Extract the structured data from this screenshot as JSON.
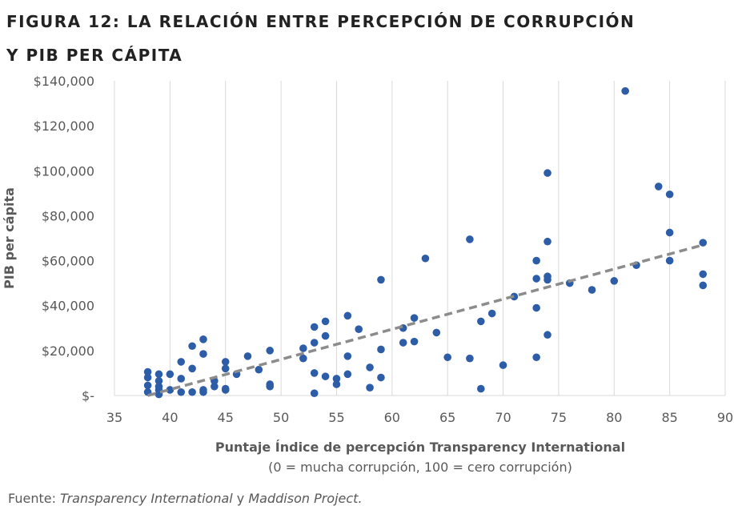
{
  "title": {
    "line1": "FIGURA 12: LA RELACIÓN ENTRE PERCEPCIÓN DE CORRUPCIÓN",
    "line2": "Y PIB PER CÁPITA"
  },
  "source": {
    "prefix": "Fuente: ",
    "source_a": "Transparency International",
    "connector": " y ",
    "source_b": "Maddison Project."
  },
  "colors": {
    "points": "#2E5DA8",
    "trendline": "#8C8C8C",
    "grid": "#D9D9D9",
    "axis_text": "#595959"
  },
  "chart_data": {
    "type": "scatter",
    "title": "FIGURA 12: LA RELACIÓN ENTRE PERCEPCIÓN DE CORRUPCIÓN Y PIB PER CÁPITA",
    "xlabel": "Puntaje Índice de percepción Transparency International",
    "xlabel_sub": "(0 = mucha corrupción, 100 = cero corrupción)",
    "ylabel": "PIB per cápita",
    "xlim": [
      35,
      90
    ],
    "ylim": [
      0,
      140000
    ],
    "x_ticks": [
      35,
      40,
      45,
      50,
      55,
      60,
      65,
      70,
      75,
      80,
      85,
      90
    ],
    "y_ticks": [
      0,
      20000,
      40000,
      60000,
      80000,
      100000,
      120000,
      140000
    ],
    "y_tick_labels": [
      "$-",
      "$20,000",
      "$40,000",
      "$60,000",
      "$80,000",
      "$100,000",
      "$120,000",
      "$140,000"
    ],
    "grid": "vertical",
    "points": [
      [
        38,
        10500
      ],
      [
        38,
        8000
      ],
      [
        38,
        4500
      ],
      [
        38,
        1500
      ],
      [
        39,
        9500
      ],
      [
        39,
        6500
      ],
      [
        39,
        4000
      ],
      [
        39,
        2500
      ],
      [
        39,
        500
      ],
      [
        40,
        9500
      ],
      [
        40,
        2500
      ],
      [
        41,
        15000
      ],
      [
        41,
        7500
      ],
      [
        41,
        1500
      ],
      [
        42,
        22000
      ],
      [
        42,
        12000
      ],
      [
        42,
        1500
      ],
      [
        43,
        25000
      ],
      [
        43,
        18500
      ],
      [
        43,
        2500
      ],
      [
        43,
        1500
      ],
      [
        44,
        6500
      ],
      [
        44,
        4000
      ],
      [
        45,
        15000
      ],
      [
        45,
        12000
      ],
      [
        45,
        3000
      ],
      [
        45,
        2500
      ],
      [
        46,
        9500
      ],
      [
        47,
        17500
      ],
      [
        48,
        11500
      ],
      [
        49,
        20000
      ],
      [
        49,
        5000
      ],
      [
        49,
        4000
      ],
      [
        52,
        21000
      ],
      [
        52,
        16500
      ],
      [
        53,
        30500
      ],
      [
        53,
        23500
      ],
      [
        53,
        10000
      ],
      [
        53,
        1000
      ],
      [
        54,
        33000
      ],
      [
        54,
        26500
      ],
      [
        54,
        8500
      ],
      [
        55,
        7500
      ],
      [
        55,
        5000
      ],
      [
        56,
        35500
      ],
      [
        56,
        17500
      ],
      [
        56,
        9500
      ],
      [
        57,
        29500
      ],
      [
        58,
        12500
      ],
      [
        58,
        3500
      ],
      [
        59,
        51500
      ],
      [
        59,
        20500
      ],
      [
        59,
        8000
      ],
      [
        61,
        30000
      ],
      [
        61,
        23500
      ],
      [
        62,
        34500
      ],
      [
        62,
        24000
      ],
      [
        63,
        61000
      ],
      [
        64,
        28000
      ],
      [
        65,
        17000
      ],
      [
        67,
        69500
      ],
      [
        67,
        16500
      ],
      [
        68,
        33000
      ],
      [
        68,
        3000
      ],
      [
        69,
        36500
      ],
      [
        70,
        13500
      ],
      [
        71,
        44000
      ],
      [
        73,
        60000
      ],
      [
        73,
        52000
      ],
      [
        73,
        39000
      ],
      [
        73,
        17000
      ],
      [
        74,
        99000
      ],
      [
        74,
        68500
      ],
      [
        74,
        53000
      ],
      [
        74,
        51500
      ],
      [
        74,
        27000
      ],
      [
        76,
        50000
      ],
      [
        78,
        47000
      ],
      [
        80,
        51000
      ],
      [
        81,
        135500
      ],
      [
        82,
        58000
      ],
      [
        84,
        93000
      ],
      [
        85,
        89500
      ],
      [
        85,
        72500
      ],
      [
        85,
        60000
      ],
      [
        88,
        68000
      ],
      [
        88,
        54000
      ],
      [
        88,
        49000
      ]
    ],
    "trendline": {
      "style": "dashed",
      "from": [
        38,
        0
      ],
      "to": [
        88,
        67000
      ]
    }
  }
}
